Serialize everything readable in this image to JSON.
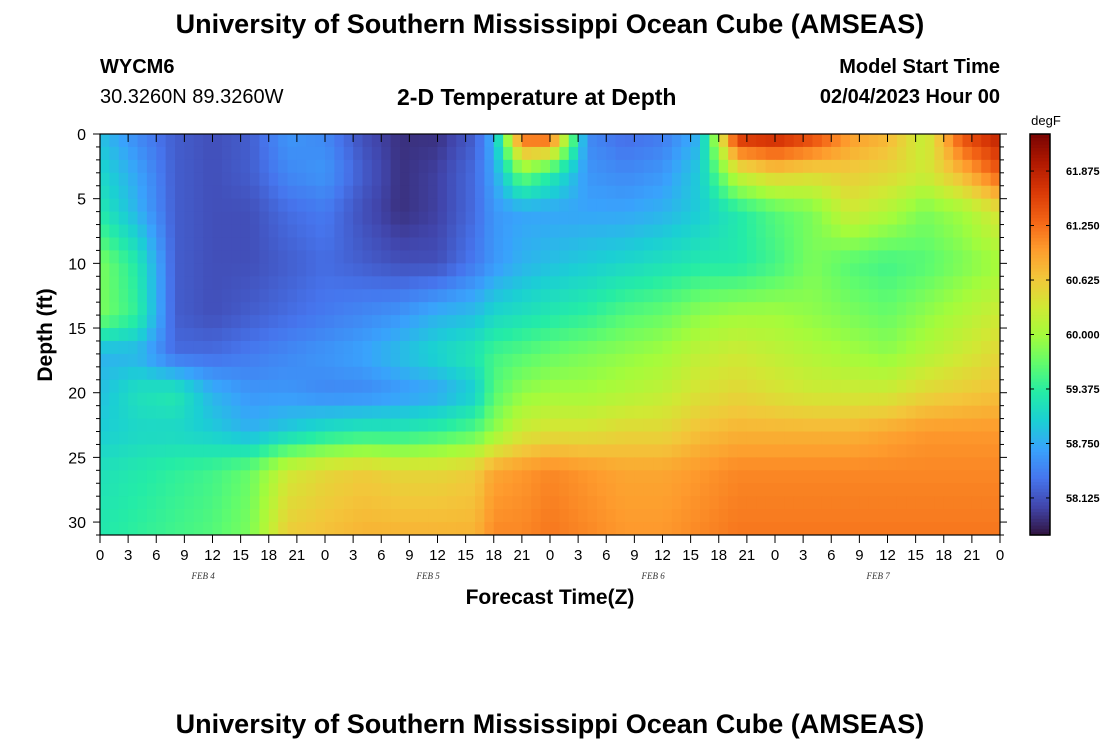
{
  "header": {
    "title": "University of Southern Mississippi Ocean Cube (AMSEAS)",
    "station_id": "WYCM6",
    "coordinates": "30.3260N  89.3260W",
    "plot_title": "2-D Temperature at Depth",
    "model_start_label": "Model Start Time",
    "model_start_value": "02/04/2023 Hour 00"
  },
  "footer": {
    "title": "University of Southern Mississippi Ocean Cube (AMSEAS)"
  },
  "colors": {
    "ramp": [
      "#30123b",
      "#4145ab",
      "#4675ed",
      "#39a2fc",
      "#1bcfd4",
      "#24eca6",
      "#61fc6c",
      "#a4fc3b",
      "#d1e834",
      "#f3c63a",
      "#fe9b2d",
      "#f36315",
      "#d93806",
      "#b11901",
      "#7a0402"
    ]
  },
  "chart_data": {
    "type": "heatmap",
    "title": "2-D Temperature at Depth",
    "xlabel": "Forecast Time(Z)",
    "ylabel": "Depth (ft)",
    "x_hours_range": [
      0,
      96
    ],
    "x_tick_labels": [
      "0",
      "3",
      "6",
      "9",
      "12",
      "15",
      "18",
      "21",
      "0",
      "3",
      "6",
      "9",
      "12",
      "15",
      "18",
      "21",
      "0",
      "3",
      "6",
      "9",
      "12",
      "15",
      "18",
      "21",
      "0",
      "3",
      "6",
      "9",
      "12",
      "15",
      "18",
      "21",
      "0"
    ],
    "day_labels": [
      {
        "label": "FEB 4",
        "hour": 11
      },
      {
        "label": "FEB 5",
        "hour": 35
      },
      {
        "label": "FEB 6",
        "hour": 59
      },
      {
        "label": "FEB 7",
        "hour": 83
      }
    ],
    "y_range_ft": [
      0,
      31
    ],
    "y_ticks": [
      0,
      5,
      10,
      15,
      20,
      25,
      30
    ],
    "colorbar": {
      "unit": "degF",
      "min": 57.7,
      "max": 62.3,
      "tick_values": [
        58.125,
        58.75,
        59.375,
        60.0,
        60.625,
        61.25,
        61.875
      ],
      "tick_labels": [
        "58.125",
        "58.750",
        "59.375",
        "60.000",
        "60.625",
        "61.250",
        "61.875"
      ]
    },
    "depth_levels_ft": [
      0,
      3,
      6,
      10,
      14,
      17,
      20,
      23,
      26,
      31
    ],
    "time_hours": [
      0,
      4,
      8,
      12,
      16,
      20,
      24,
      28,
      32,
      36,
      40,
      42,
      45,
      48,
      52,
      56,
      60,
      64,
      68,
      72,
      76,
      80,
      84,
      88,
      92,
      96
    ],
    "temperature_degF": [
      [
        58.9,
        58.5,
        58.2,
        58.1,
        58.2,
        58.6,
        58.5,
        58.1,
        57.9,
        57.9,
        58.2,
        58.8,
        61.4,
        61.5,
        58.5,
        58.3,
        58.4,
        58.8,
        61.8,
        61.9,
        61.6,
        61.0,
        60.8,
        60.2,
        61.5,
        61.9
      ],
      [
        59.1,
        58.7,
        58.2,
        58.1,
        58.2,
        58.5,
        58.6,
        58.2,
        57.9,
        58.0,
        58.3,
        58.7,
        59.8,
        59.4,
        58.6,
        58.5,
        58.6,
        59.0,
        60.3,
        60.6,
        60.5,
        60.6,
        60.5,
        60.3,
        60.8,
        61.4
      ],
      [
        59.3,
        58.8,
        58.2,
        58.1,
        58.1,
        58.3,
        58.4,
        58.1,
        57.9,
        58.0,
        58.3,
        58.6,
        58.7,
        58.7,
        58.7,
        58.7,
        58.8,
        59.0,
        59.3,
        59.6,
        59.8,
        60.3,
        60.1,
        59.8,
        60.0,
        60.4
      ],
      [
        59.8,
        59.3,
        58.2,
        58.1,
        58.1,
        58.2,
        58.3,
        58.2,
        58.1,
        58.1,
        58.4,
        58.6,
        58.8,
        58.9,
        59.0,
        59.1,
        59.2,
        59.3,
        59.3,
        59.5,
        59.8,
        59.6,
        59.5,
        59.6,
        59.8,
        60.0
      ],
      [
        59.8,
        59.4,
        58.2,
        58.1,
        58.2,
        58.3,
        58.4,
        58.5,
        58.6,
        58.8,
        58.9,
        59.1,
        59.2,
        59.3,
        59.4,
        59.6,
        59.7,
        59.9,
        60.0,
        60.0,
        59.9,
        59.8,
        59.7,
        59.9,
        60.1,
        60.3
      ],
      [
        58.8,
        58.8,
        58.3,
        58.3,
        58.4,
        58.5,
        58.6,
        58.7,
        58.9,
        59.1,
        59.3,
        59.5,
        59.6,
        59.7,
        59.8,
        59.9,
        60.0,
        60.2,
        60.3,
        60.2,
        60.1,
        60.0,
        59.9,
        60.1,
        60.3,
        60.5
      ],
      [
        58.9,
        59.2,
        59.3,
        58.8,
        58.6,
        58.6,
        58.5,
        58.5,
        58.6,
        58.7,
        59.0,
        59.6,
        59.9,
        60.0,
        60.0,
        60.1,
        60.2,
        60.4,
        60.5,
        60.4,
        60.3,
        60.3,
        60.3,
        60.5,
        60.6,
        60.7
      ],
      [
        59.0,
        59.1,
        59.1,
        59.0,
        58.8,
        59.0,
        59.2,
        59.3,
        59.3,
        59.4,
        59.6,
        59.9,
        60.3,
        60.4,
        60.4,
        60.5,
        60.5,
        60.7,
        60.8,
        60.8,
        60.8,
        60.8,
        60.9,
        61.0,
        61.0,
        61.0
      ],
      [
        59.2,
        59.3,
        59.4,
        59.5,
        59.7,
        60.3,
        60.5,
        60.6,
        60.5,
        60.5,
        60.6,
        60.9,
        61.0,
        61.1,
        61.0,
        60.9,
        60.9,
        61.0,
        61.1,
        61.1,
        61.1,
        61.1,
        61.1,
        61.1,
        61.1,
        61.1
      ],
      [
        59.3,
        59.4,
        59.5,
        59.6,
        59.8,
        60.6,
        60.7,
        60.8,
        60.8,
        60.8,
        60.8,
        61.1,
        61.1,
        61.2,
        61.1,
        61.0,
        61.0,
        61.1,
        61.2,
        61.2,
        61.2,
        61.2,
        61.2,
        61.2,
        61.2,
        61.2
      ]
    ]
  }
}
